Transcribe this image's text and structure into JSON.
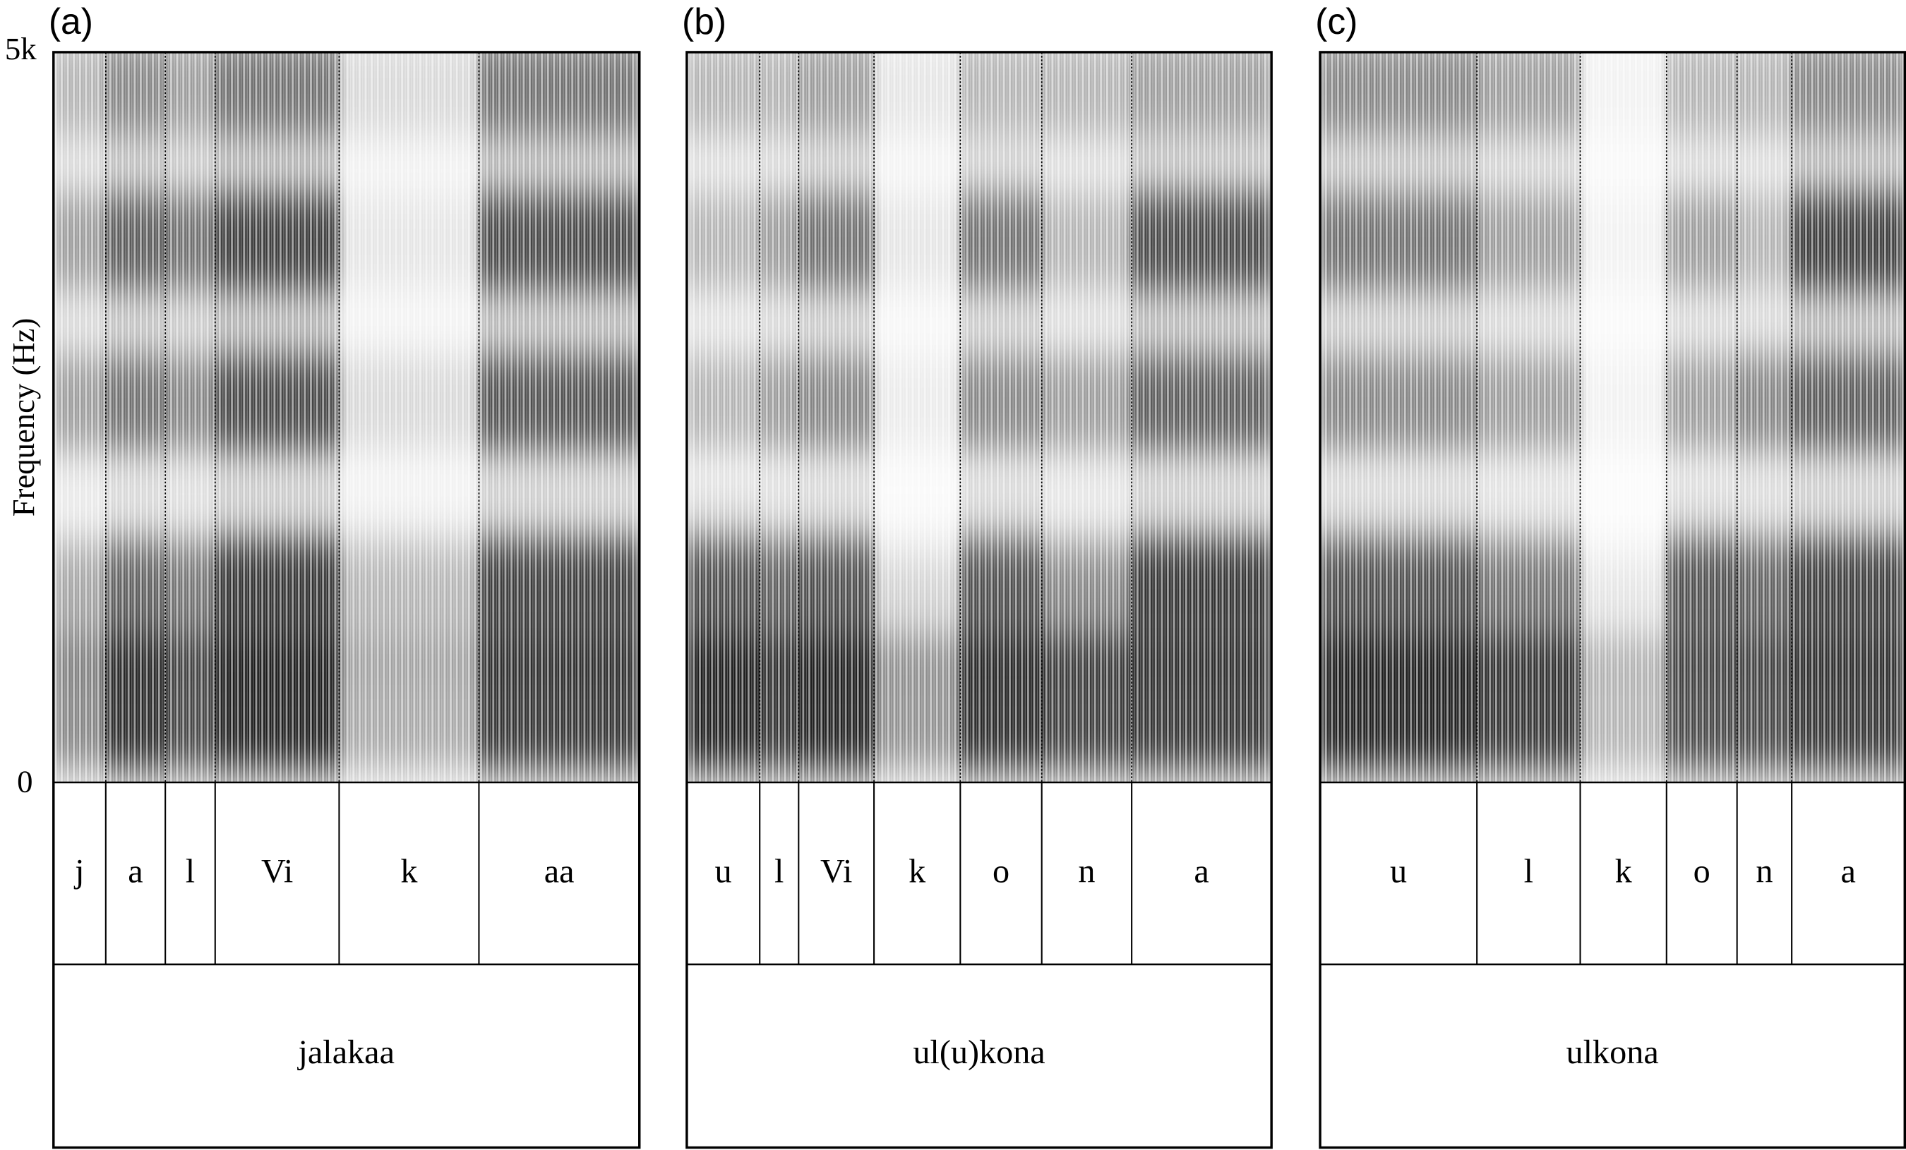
{
  "y_axis": {
    "label": "Frequency (Hz)",
    "top": "5k",
    "bottom": "0"
  },
  "panels": [
    {
      "label": "(a)",
      "segments": [
        "j",
        "a",
        "l",
        "Vi",
        "k",
        "aa"
      ],
      "word": "jalakaa"
    },
    {
      "label": "(b)",
      "segments": [
        "u",
        "l",
        "Vi",
        "k",
        "o",
        "n",
        "a"
      ],
      "word": "ul(u)kona"
    },
    {
      "label": "(c)",
      "segments": [
        "u",
        "l",
        "k",
        "o",
        "n",
        "a"
      ],
      "word": "ulkona"
    }
  ]
}
